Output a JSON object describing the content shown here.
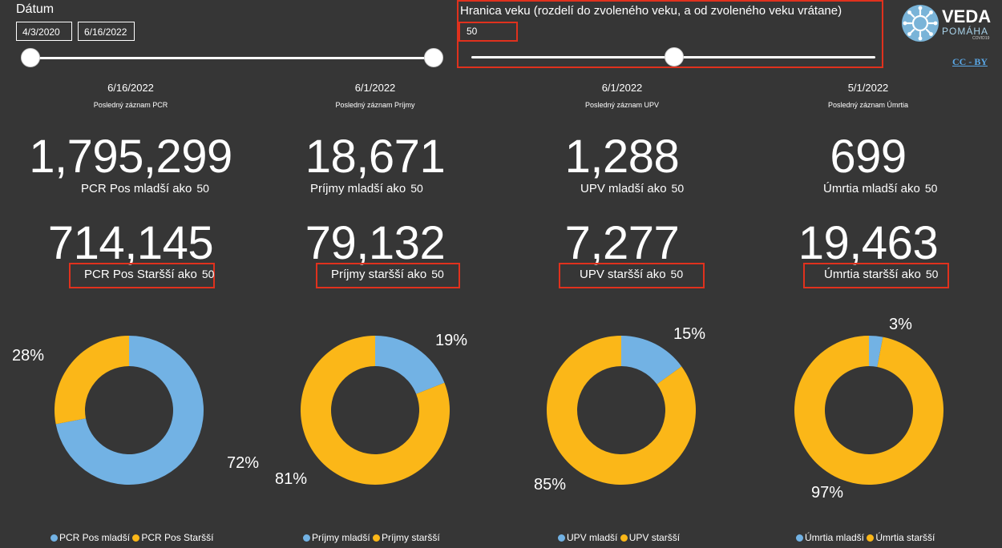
{
  "filters": {
    "date_title": "Dátum",
    "date_from": "4/3/2020",
    "date_to": "6/16/2022",
    "age_title": "Hranica veku (rozdelí do zvoleného veku, a od zvoleného veku vrátane)",
    "age_value": "50",
    "age_slider_fraction": 0.5
  },
  "logo": {
    "veda": "VEDA",
    "pomaha": "POMÁHA",
    "covid": "COVID19"
  },
  "license_link": "CC - BY",
  "colors": {
    "background": "#363636",
    "blue": "#72b2e4",
    "yellow": "#fbb718",
    "highlight": "#e0311d"
  },
  "columns": [
    {
      "date": "6/16/2022",
      "subtitle": "Posledný záznam PCR",
      "young_value": "1,795,299",
      "young_label": "PCR Pos mladší ako",
      "young_age": "50",
      "old_value": "714,145",
      "old_label": "PCR Pos Staršší ako",
      "old_age": "50",
      "young_pct": "72%",
      "old_pct": "28%",
      "legend_young": "PCR Pos mladší",
      "legend_old": "PCR Pos Staršší"
    },
    {
      "date": "6/1/2022",
      "subtitle": "Posledný záznam Príjmy",
      "young_value": "18,671",
      "young_label": "Príjmy mladší ako",
      "young_age": "50",
      "old_value": "79,132",
      "old_label": "Príjmy staršší ako",
      "old_age": "50",
      "young_pct": "19%",
      "old_pct": "81%",
      "legend_young": "Príjmy mladší",
      "legend_old": "Príjmy staršší"
    },
    {
      "date": "6/1/2022",
      "subtitle": "Posledný záznam UPV",
      "young_value": "1,288",
      "young_label": "UPV mladší ako",
      "young_age": "50",
      "old_value": "7,277",
      "old_label": "UPV staršší ako",
      "old_age": "50",
      "young_pct": "15%",
      "old_pct": "85%",
      "legend_young": "UPV mladší",
      "legend_old": "UPV staršší"
    },
    {
      "date": "5/1/2022",
      "subtitle": "Posledný záznam Úmrtia",
      "young_value": "699",
      "young_label": "Úmrtia mladší ako",
      "young_age": "50",
      "old_value": "19,463",
      "old_label": "Úmrtia staršší ako",
      "old_age": "50",
      "young_pct": "3%",
      "old_pct": "97%",
      "legend_young": "Úmrtia mladší",
      "legend_old": "Úmrtia staršší"
    }
  ],
  "chart_data": [
    {
      "type": "pie",
      "labels": [
        "PCR Pos mladší",
        "PCR Pos Staršší"
      ],
      "values": [
        72,
        28
      ]
    },
    {
      "type": "pie",
      "labels": [
        "Príjmy mladší",
        "Príjmy staršší"
      ],
      "values": [
        19,
        81
      ]
    },
    {
      "type": "pie",
      "labels": [
        "UPV mladší",
        "UPV staršší"
      ],
      "values": [
        15,
        85
      ]
    },
    {
      "type": "pie",
      "labels": [
        "Úmrtia mladší",
        "Úmrtia staršší"
      ],
      "values": [
        3,
        97
      ]
    }
  ]
}
